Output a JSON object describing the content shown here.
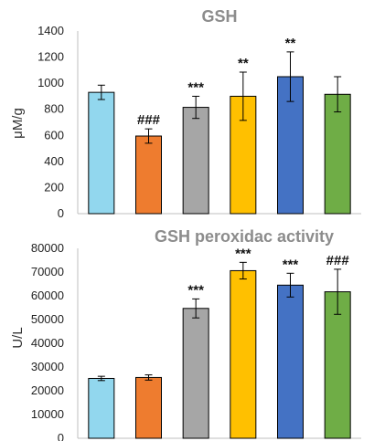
{
  "chart_data": [
    {
      "type": "bar",
      "title": "GSH",
      "ylabel": "μM/g",
      "ylim": [
        0,
        1400
      ],
      "yticks": [
        "0",
        "200",
        "400",
        "600",
        "800",
        "1000",
        "1200",
        "1400"
      ],
      "categories": [
        "",
        "",
        "",
        "",
        "",
        ""
      ],
      "values": [
        930,
        595,
        815,
        900,
        1050,
        915
      ],
      "errors": [
        55,
        55,
        85,
        185,
        190,
        135
      ],
      "colors": [
        "#92d7ee",
        "#ee7c2f",
        "#a6a6a6",
        "#ffc000",
        "#4472c4",
        "#6fad46"
      ],
      "annotations": [
        "",
        "###",
        "***",
        "**",
        "**",
        ""
      ],
      "grid": false
    },
    {
      "type": "bar",
      "title": "GSH peroxidac activity",
      "ylabel": "U/L",
      "ylim": [
        0,
        80000
      ],
      "yticks": [
        "0",
        "10000",
        "20000",
        "30000",
        "40000",
        "50000",
        "60000",
        "70000",
        "80000"
      ],
      "categories": [
        "",
        "",
        "",
        "",
        "",
        ""
      ],
      "values": [
        25200,
        25600,
        54700,
        70600,
        64500,
        61700
      ],
      "errors": [
        900,
        1100,
        4000,
        3500,
        5000,
        9500
      ],
      "colors": [
        "#92d7ee",
        "#ee7c2f",
        "#a6a6a6",
        "#ffc000",
        "#4472c4",
        "#6fad46"
      ],
      "annotations": [
        "",
        "",
        "***",
        "***",
        "***",
        "###"
      ],
      "grid": false
    }
  ]
}
